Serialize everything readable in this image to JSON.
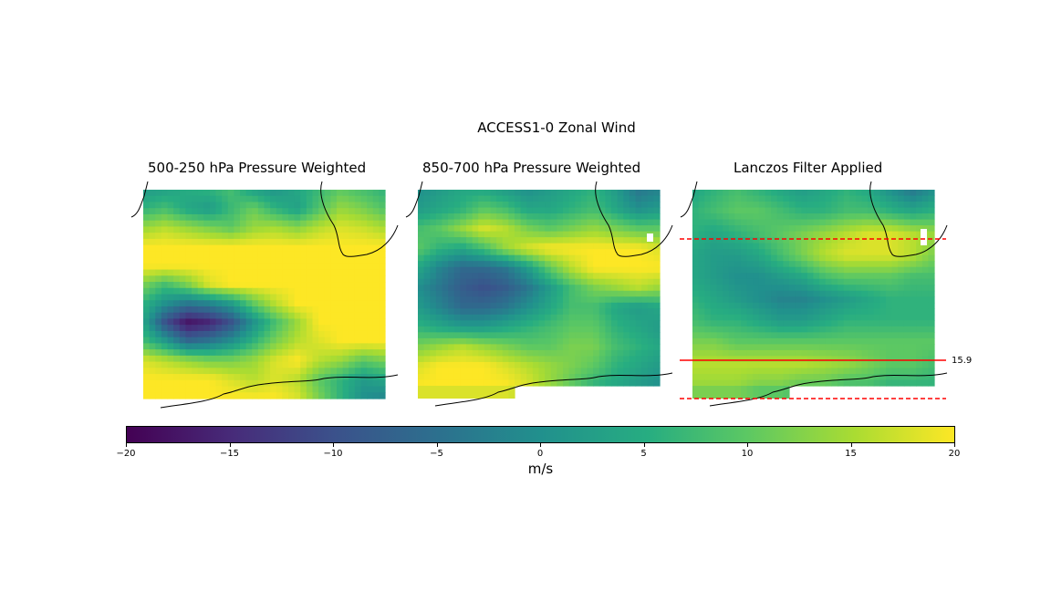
{
  "chart_data": {
    "type": "heatmap",
    "title": "ACCESS1-0 Zonal Wind",
    "colormap": "viridis",
    "vmin": -20,
    "vmax": 20,
    "colorbar_label": "m/s",
    "colorbar_ticks": [
      "−20",
      "−15",
      "−10",
      "−5",
      "0",
      "5",
      "10",
      "15",
      "20"
    ],
    "panels": [
      {
        "title": "500-250 hPa Pressure Weighted",
        "description_values": [
          [
            2,
            3,
            5,
            6,
            8,
            3,
            1,
            4,
            7,
            10,
            8,
            6
          ],
          [
            6,
            8,
            4,
            2,
            7,
            11,
            6,
            3,
            9,
            14,
            12,
            9
          ],
          [
            14,
            16,
            14,
            12,
            10,
            14,
            15,
            13,
            16,
            18,
            17,
            15
          ],
          [
            20,
            20,
            20,
            20,
            20,
            20,
            20,
            20,
            20,
            20,
            20,
            20
          ],
          [
            20,
            20,
            20,
            20,
            20,
            20,
            20,
            20,
            20,
            20,
            20,
            20
          ],
          [
            12,
            8,
            12,
            18,
            20,
            20,
            20,
            20,
            20,
            20,
            20,
            20
          ],
          [
            6,
            0,
            -4,
            -2,
            2,
            10,
            16,
            20,
            20,
            20,
            20,
            20
          ],
          [
            4,
            -10,
            -18,
            -16,
            -10,
            0,
            8,
            14,
            20,
            20,
            20,
            20
          ],
          [
            8,
            2,
            -6,
            -4,
            0,
            6,
            12,
            16,
            18,
            20,
            20,
            20
          ],
          [
            18,
            16,
            14,
            12,
            12,
            14,
            18,
            20,
            16,
            14,
            10,
            12
          ],
          [
            20,
            20,
            20,
            20,
            18,
            16,
            18,
            16,
            10,
            6,
            2,
            4
          ],
          [
            20,
            20,
            20,
            20,
            20,
            20,
            20,
            18,
            12,
            6,
            0,
            -2
          ]
        ]
      },
      {
        "title": "850-700 hPa Pressure Weighted",
        "description_values": [
          [
            0,
            2,
            4,
            4,
            2,
            0,
            2,
            4,
            6,
            2,
            -4,
            -2
          ],
          [
            2,
            4,
            6,
            10,
            8,
            4,
            4,
            6,
            8,
            4,
            0,
            2
          ],
          [
            8,
            10,
            14,
            18,
            16,
            12,
            10,
            12,
            14,
            12,
            10,
            10
          ],
          [
            10,
            6,
            4,
            8,
            14,
            18,
            20,
            20,
            20,
            20,
            20,
            18
          ],
          [
            4,
            -2,
            -6,
            -6,
            -4,
            2,
            10,
            16,
            20,
            20,
            20,
            20
          ],
          [
            0,
            -4,
            -8,
            -10,
            -8,
            -4,
            2,
            8,
            12,
            14,
            16,
            14
          ],
          [
            2,
            -2,
            -6,
            -6,
            -4,
            0,
            4,
            8,
            8,
            4,
            2,
            4
          ],
          [
            6,
            4,
            2,
            2,
            4,
            6,
            8,
            10,
            10,
            6,
            4,
            2
          ],
          [
            12,
            14,
            16,
            14,
            12,
            10,
            10,
            12,
            12,
            8,
            6,
            4
          ],
          [
            18,
            20,
            20,
            20,
            18,
            16,
            14,
            12,
            10,
            6,
            4,
            2
          ],
          [
            20,
            20,
            20,
            20,
            20,
            18,
            14,
            10,
            6,
            4,
            2,
            0
          ]
        ]
      },
      {
        "title": "Lanczos Filter Applied",
        "description_values": [
          [
            4,
            6,
            8,
            6,
            4,
            2,
            4,
            6,
            4,
            0,
            -4,
            0
          ],
          [
            6,
            8,
            10,
            10,
            8,
            6,
            6,
            8,
            8,
            6,
            4,
            6
          ],
          [
            6,
            4,
            6,
            8,
            10,
            12,
            14,
            16,
            18,
            18,
            16,
            14
          ],
          [
            4,
            2,
            2,
            4,
            8,
            12,
            16,
            18,
            18,
            18,
            16,
            12
          ],
          [
            4,
            2,
            0,
            0,
            2,
            4,
            8,
            10,
            10,
            10,
            8,
            8
          ],
          [
            6,
            4,
            2,
            0,
            -2,
            -2,
            0,
            2,
            4,
            6,
            6,
            6
          ],
          [
            8,
            6,
            6,
            4,
            2,
            2,
            4,
            6,
            6,
            6,
            6,
            6
          ],
          [
            12,
            12,
            10,
            10,
            10,
            10,
            10,
            10,
            10,
            10,
            10,
            10
          ],
          [
            16,
            16,
            16,
            16,
            16,
            16,
            15,
            14,
            12,
            10,
            10,
            8
          ],
          [
            14,
            14,
            14,
            12,
            12,
            10,
            10,
            8,
            8,
            6,
            6,
            6
          ]
        ],
        "hlines": [
          {
            "style": "dashed",
            "color": "#ff0000"
          },
          {
            "style": "solid",
            "color": "#ff0000",
            "label": "15.9"
          },
          {
            "style": "dashed",
            "color": "#ff0000"
          }
        ]
      }
    ]
  },
  "colors": {
    "coastline": "#000000",
    "hline": "#ff0000",
    "missing": "#ffffff"
  }
}
